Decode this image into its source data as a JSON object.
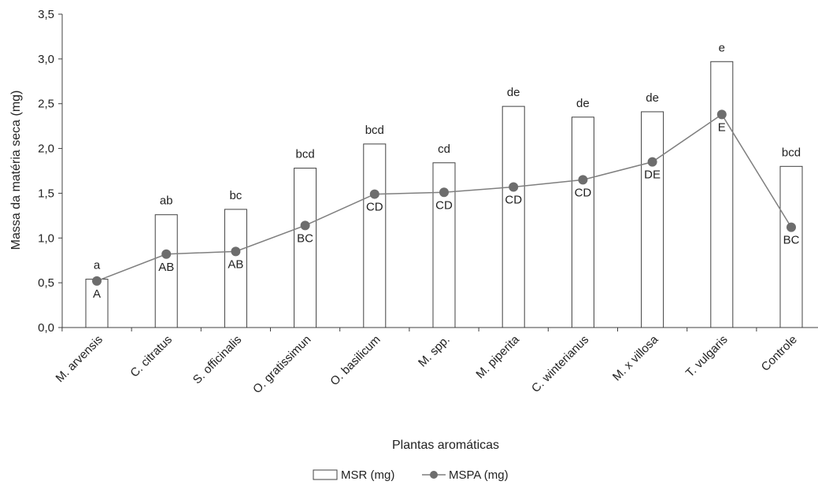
{
  "chart_data": {
    "type": "bar",
    "xlabel": "Plantas aromáticas",
    "ylabel": "Massa da matéria seca (mg)",
    "ylim": [
      0,
      3.5
    ],
    "yticks": [
      "0,0",
      "0,5",
      "1,0",
      "1,5",
      "2,0",
      "2,5",
      "3,0",
      "3,5"
    ],
    "categories": [
      "M. arvensis",
      "C. citratus",
      "S. officinalis",
      "O. gratissimun",
      "O. basilicum",
      "M. spp.",
      "M. piperita",
      "C. winterianus",
      "M. x villosa",
      "T. vulgaris",
      "Controle"
    ],
    "series": [
      {
        "name": "MSR (mg)",
        "type": "bar",
        "values": [
          0.54,
          1.26,
          1.32,
          1.78,
          2.05,
          1.84,
          2.47,
          2.35,
          2.41,
          2.97,
          1.8
        ],
        "labels": [
          "a",
          "ab",
          "bc",
          "bcd",
          "bcd",
          "cd",
          "de",
          "de",
          "de",
          "e",
          "bcd"
        ]
      },
      {
        "name": "MSPA (mg)",
        "type": "line",
        "values": [
          0.52,
          0.82,
          0.85,
          1.14,
          1.49,
          1.51,
          1.57,
          1.65,
          1.85,
          2.38,
          1.12
        ],
        "labels": [
          "A",
          "AB",
          "AB",
          "BC",
          "CD",
          "CD",
          "CD",
          "CD",
          "DE",
          "E",
          "BC"
        ]
      }
    ],
    "colors": {
      "bar_fill": "#ffffff",
      "bar_stroke": "#404040",
      "line": "#7f7f7f",
      "marker": "#6d6d6d"
    },
    "legend_position": "bottom"
  }
}
